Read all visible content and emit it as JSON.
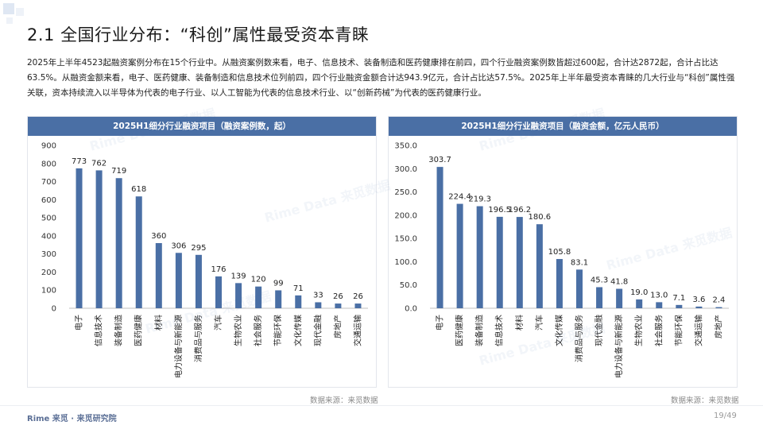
{
  "header": {
    "title": "2.1 全国行业分布：“科创”属性最受资本青睐"
  },
  "summary": "2025年上半年4523起融资案例分布在15个行业中。从融资案例数来看，电子、信息技术、装备制造和医药健康排在前四，四个行业融资案例数皆超过600起，合计达2872起，合计占比达63.5%。从融资金额来看，电子、医药健康、装备制造和信息技术位列前四，四个行业融资金额合计达943.9亿元，合计占比达57.5%。2025年上半年最受资本青睐的几大行业与“科创”属性强关联，资本持续流入以半导体为代表的电子行业、以人工智能为代表的信息技术行业、以“创新药械”为代表的医药健康行业。",
  "chart_data": [
    {
      "type": "bar",
      "title": "2025H1细分行业融资项目（融资案例数，起）",
      "categories": [
        "电子",
        "信息技术",
        "装备制造",
        "医药健康",
        "材料",
        "电力设备与新能源",
        "消费品与服务",
        "汽车",
        "生物农业",
        "社会服务",
        "节能环保",
        "文化传媒",
        "现代金融",
        "房地产",
        "交通运输"
      ],
      "values": [
        773,
        762,
        719,
        618,
        360,
        306,
        295,
        176,
        139,
        120,
        99,
        71,
        33,
        26,
        26
      ],
      "value_labels": [
        "773",
        "762",
        "719",
        "618",
        "360",
        "306",
        "295",
        "176",
        "139",
        "120",
        "99",
        "71",
        "33",
        "26",
        "26"
      ],
      "ylim": [
        0,
        900
      ],
      "yticks": [
        "0",
        "100",
        "200",
        "300",
        "400",
        "500",
        "600",
        "700",
        "800",
        "900"
      ],
      "grid": false,
      "bar_color": "#4a6fa5",
      "source": "数据来源：来觅数据"
    },
    {
      "type": "bar",
      "title": "2025H1细分行业融资项目（融资金额，亿元人民币）",
      "categories": [
        "电子",
        "医药健康",
        "装备制造",
        "信息技术",
        "材料",
        "汽车",
        "文化传媒",
        "消费品与服务",
        "现代金融",
        "电力设备与新能源",
        "生物农业",
        "社会服务",
        "节能环保",
        "交通运输",
        "房地产"
      ],
      "values": [
        303.7,
        224.4,
        219.3,
        196.5,
        196.2,
        180.6,
        105.8,
        83.1,
        45.3,
        41.8,
        19.0,
        13.0,
        7.1,
        3.6,
        2.4
      ],
      "value_labels": [
        "303.7",
        "224.4",
        "219.3",
        "196.5",
        "196.2",
        "180.6",
        "105.8",
        "83.1",
        "45.3",
        "41.8",
        "19.0",
        "13.0",
        "7.1",
        "3.6",
        "2.4"
      ],
      "ylim": [
        0,
        350
      ],
      "yticks": [
        "0.0",
        "50.0",
        "100.0",
        "150.0",
        "200.0",
        "250.0",
        "300.0",
        "350.0"
      ],
      "grid": false,
      "bar_color": "#4a6fa5",
      "source": "数据来源：来觅数据"
    }
  ],
  "footer": {
    "brand": "Rime 来觅 · 来觅研究院",
    "page": "19/49"
  },
  "watermark_text": "Rime Data 来觅数据"
}
